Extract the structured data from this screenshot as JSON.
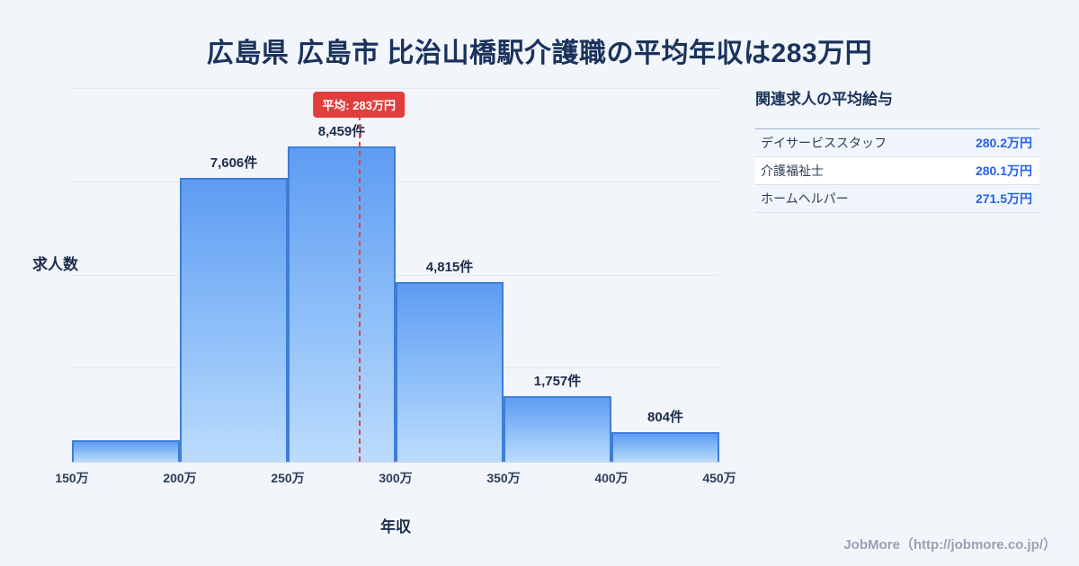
{
  "page": {
    "title": "広島県 広島市 比治山橋駅介護職の平均年収は283万円",
    "footer": "JobMore（http://jobmore.co.jp/）"
  },
  "chart_data": {
    "type": "bar",
    "title": "広島県 広島市 比治山橋駅介護職の平均年収は283万円",
    "xlabel": "年収",
    "ylabel": "求人数",
    "x_ticks": [
      "150万",
      "200万",
      "250万",
      "300万",
      "350万",
      "400万",
      "450万"
    ],
    "x_range": [
      150,
      450
    ],
    "ylim": [
      0,
      10000
    ],
    "values": [
      570,
      7606,
      8459,
      4815,
      1757,
      804
    ],
    "bar_labels": [
      "",
      "7,606件",
      "8,459件",
      "4,815件",
      "1,757件",
      "804件"
    ],
    "mean": {
      "value": 283,
      "label": "平均: 283万円"
    },
    "grid": true,
    "legend": "none",
    "colors": {
      "bar_top": "#5e9cf2",
      "bar_bottom": "#bcdcfd",
      "bar_border": "#3e7ed8",
      "mean_line": "#e8463c",
      "mean_badge_bg": "#e23d3d"
    }
  },
  "related": {
    "heading": "関連求人の平均給与",
    "rows": [
      {
        "label": "デイサービススタッフ",
        "value": "280.2万円"
      },
      {
        "label": "介護福祉士",
        "value": "280.1万円"
      },
      {
        "label": "ホームヘルパー",
        "value": "271.5万円"
      }
    ]
  }
}
